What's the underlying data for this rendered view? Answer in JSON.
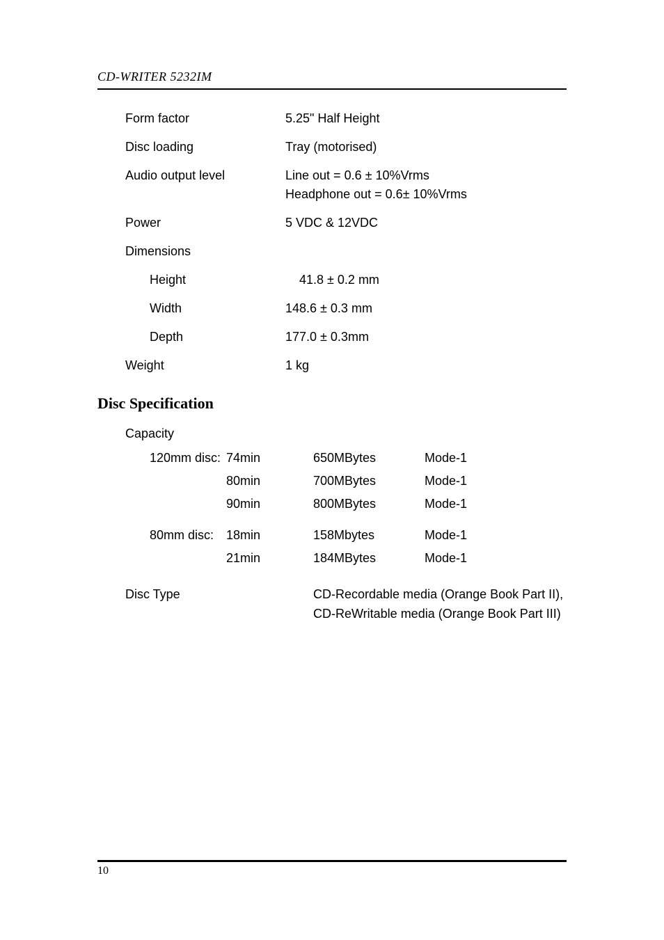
{
  "header": {
    "title": "CD-WRITER 5232IM"
  },
  "general": {
    "rows": [
      {
        "label": "Form factor",
        "value": "5.25\" Half Height",
        "indent": false
      },
      {
        "label": "Disc loading",
        "value": "Tray (motorised)",
        "indent": false
      },
      {
        "label": "Audio output level",
        "value": "Line out = 0.6 ± 10%Vrms\nHeadphone out = 0.6± 10%Vrms",
        "indent": false
      },
      {
        "label": "Power",
        "value": "5 VDC & 12VDC",
        "indent": false
      },
      {
        "label": "Dimensions",
        "value": "",
        "indent": false
      },
      {
        "label": "Height",
        "value": " 41.8 ± 0.2 mm",
        "indent": true,
        "valIndent": true
      },
      {
        "label": "Width",
        "value": "148.6 ± 0.3 mm",
        "indent": true
      },
      {
        "label": "Depth",
        "value": "177.0 ± 0.3mm",
        "indent": true
      },
      {
        "label": "Weight",
        "value": "1 kg",
        "indent": false
      }
    ]
  },
  "discSpec": {
    "heading": "Disc Specification",
    "capacityLabel": "Capacity",
    "capacityRows": [
      {
        "c1": "120mm disc:",
        "c2": "74min",
        "c3": "650MBytes",
        "c4": "Mode-1"
      },
      {
        "c1": "",
        "c2": "80min",
        "c3": "700MBytes",
        "c4": "Mode-1"
      },
      {
        "c1": "",
        "c2": "90min",
        "c3": "800MBytes",
        "c4": "Mode-1"
      },
      {
        "gap": true
      },
      {
        "c1": "80mm disc:",
        "c2": "18min",
        "c3": "158Mbytes",
        "c4": "Mode-1"
      },
      {
        "c1": "",
        "c2": "21min",
        "c3": "184MBytes",
        "c4": "Mode-1"
      }
    ],
    "discType": {
      "label": "Disc Type",
      "value": "CD-Recordable media (Orange Book Part II), CD-ReWritable media (Orange Book Part III)"
    }
  },
  "footer": {
    "page": "10"
  }
}
